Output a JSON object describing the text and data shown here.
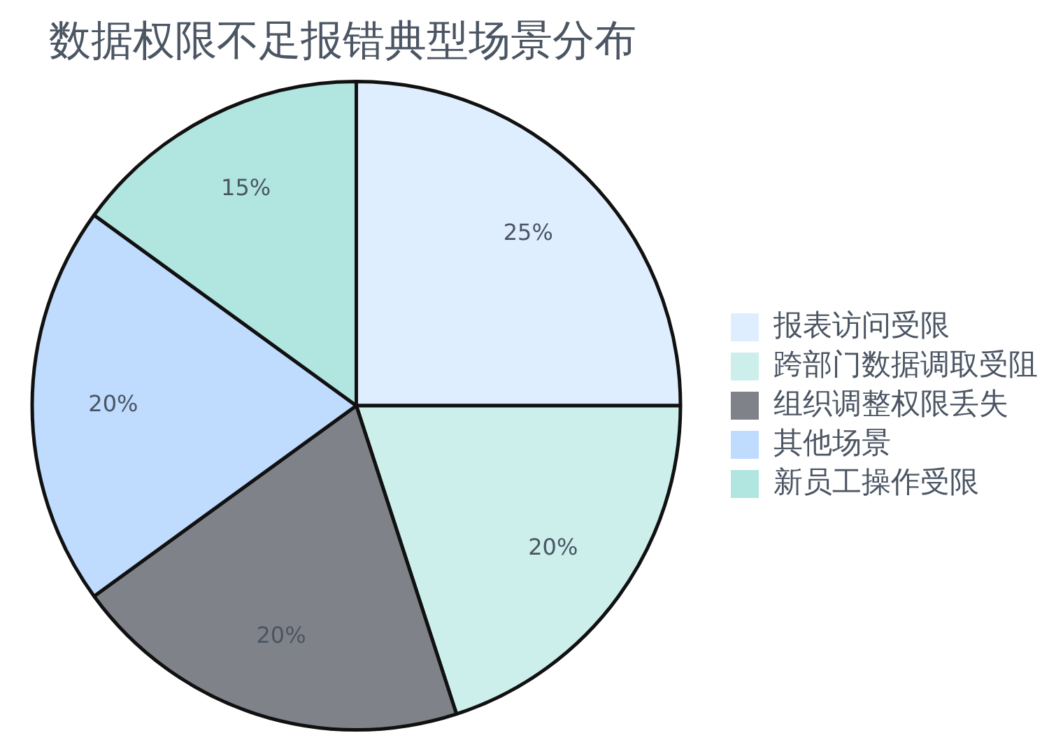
{
  "chart_data": {
    "type": "pie",
    "title": "数据权限不足报错典型场景分布",
    "categories": [
      "报表访问受限",
      "跨部门数据调取受阻",
      "组织调整权限丢失",
      "其他场景",
      "新员工操作受限"
    ],
    "values": [
      25,
      20,
      20,
      20,
      15
    ],
    "colors": [
      "#dfeefe",
      "#ccefeb",
      "#7f8389",
      "#bfdbfe",
      "#b1e6e0"
    ],
    "value_labels": [
      "25%",
      "20%",
      "20%",
      "20%",
      "15%"
    ],
    "legend": "right"
  }
}
